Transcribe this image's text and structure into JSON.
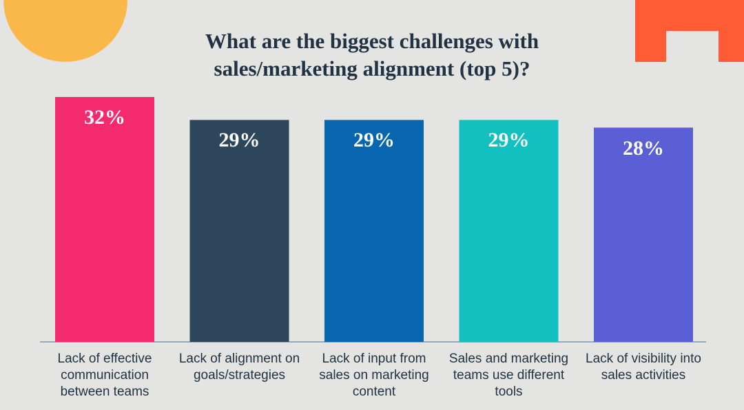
{
  "chart_data": {
    "type": "bar",
    "title": "What are the biggest challenges with sales/marketing alignment (top 5)?",
    "categories": [
      "Lack of effective communication between teams",
      "Lack of alignment on goals/strategies",
      "Lack of input from sales on marketing content",
      "Sales and marketing teams use different tools",
      "Lack of visibility into sales activities"
    ],
    "values": [
      32,
      29,
      29,
      29,
      28
    ],
    "value_labels": [
      "32%",
      "29%",
      "29%",
      "29%",
      "28%"
    ],
    "colors": [
      "#f42a6f",
      "#2d465c",
      "#0866b0",
      "#13c0c0",
      "#5b5fd6"
    ]
  }
}
